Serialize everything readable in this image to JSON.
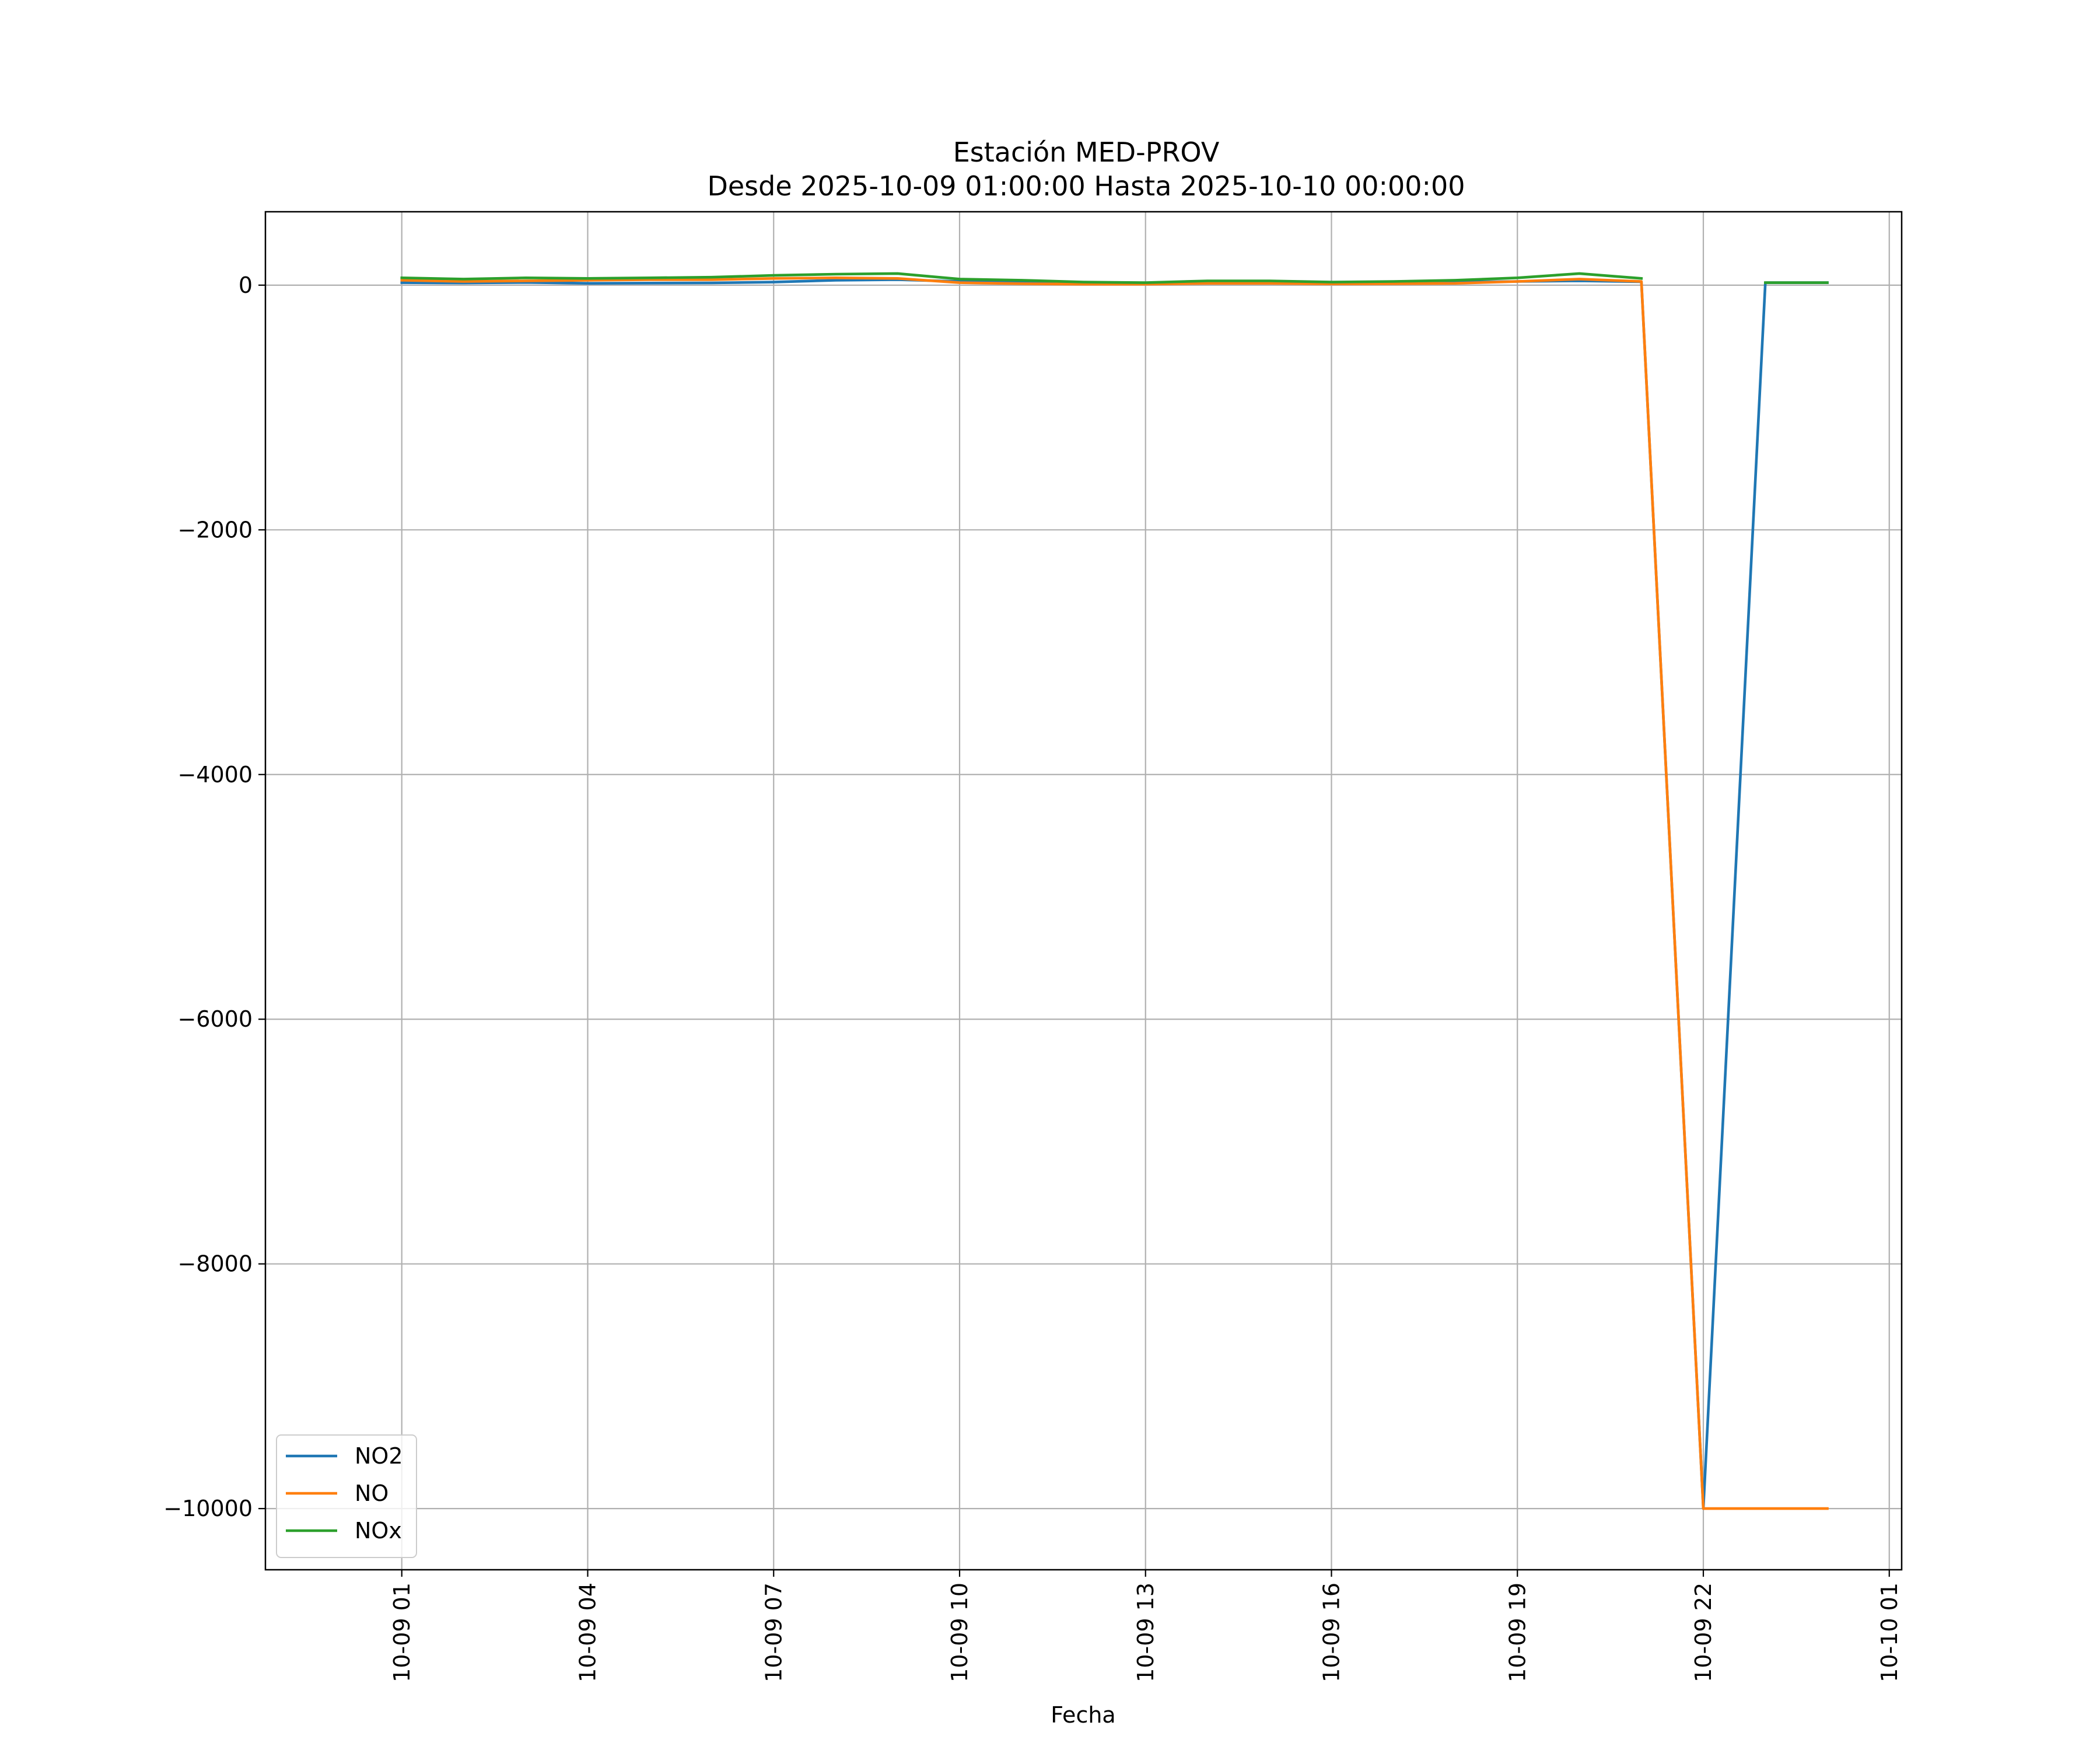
{
  "chart_data": {
    "type": "line",
    "title": "Estación MED-PROV",
    "subtitle": "Desde 2025-10-09 01:00:00 Hasta 2025-10-10 00:00:00",
    "xlabel": "Fecha",
    "ylabel": "",
    "x": [
      "2025-10-09 01:00",
      "2025-10-09 02:00",
      "2025-10-09 03:00",
      "2025-10-09 04:00",
      "2025-10-09 05:00",
      "2025-10-09 06:00",
      "2025-10-09 07:00",
      "2025-10-09 08:00",
      "2025-10-09 09:00",
      "2025-10-09 10:00",
      "2025-10-09 11:00",
      "2025-10-09 12:00",
      "2025-10-09 13:00",
      "2025-10-09 14:00",
      "2025-10-09 15:00",
      "2025-10-09 16:00",
      "2025-10-09 17:00",
      "2025-10-09 18:00",
      "2025-10-09 19:00",
      "2025-10-09 20:00",
      "2025-10-09 21:00",
      "2025-10-09 22:00",
      "2025-10-09 23:00",
      "2025-10-10 00:00"
    ],
    "x_ticks": [
      "10-09 01",
      "10-09 04",
      "10-09 07",
      "10-09 10",
      "10-09 13",
      "10-09 16",
      "10-09 19",
      "10-09 22",
      "10-10 01"
    ],
    "x_tick_positions": [
      "2025-10-09 01:00",
      "2025-10-09 04:00",
      "2025-10-09 07:00",
      "2025-10-09 10:00",
      "2025-10-09 13:00",
      "2025-10-09 16:00",
      "2025-10-09 19:00",
      "2025-10-09 22:00",
      "2025-10-10 01:00"
    ],
    "xlim": [
      "2025-10-08 22:48",
      "2025-10-10 01:12"
    ],
    "y_ticks": [
      0,
      -2000,
      -4000,
      -6000,
      -8000,
      -10000
    ],
    "y_tick_labels": [
      "0",
      "−2000",
      "−4000",
      "−6000",
      "−8000",
      "−10000"
    ],
    "ylim": [
      -10500,
      600
    ],
    "grid": true,
    "legend_position": "lower-left",
    "series": [
      {
        "name": "NO2",
        "color": "#1f77b4",
        "values": [
          20,
          18,
          22,
          15,
          17,
          19,
          25,
          40,
          45,
          30,
          25,
          15,
          12,
          20,
          22,
          18,
          20,
          25,
          30,
          35,
          28,
          -10000,
          20,
          20
        ]
      },
      {
        "name": "NO",
        "color": "#ff7f0e",
        "values": [
          40,
          30,
          35,
          40,
          45,
          45,
          55,
          60,
          55,
          20,
          12,
          8,
          8,
          15,
          15,
          10,
          12,
          15,
          30,
          50,
          30,
          -10000,
          -10000,
          -10000
        ]
      },
      {
        "name": "NOx",
        "color": "#2ca02c",
        "values": [
          60,
          50,
          60,
          55,
          60,
          65,
          80,
          90,
          95,
          50,
          40,
          25,
          20,
          35,
          35,
          25,
          30,
          40,
          60,
          95,
          55,
          null,
          20,
          20
        ]
      }
    ]
  }
}
